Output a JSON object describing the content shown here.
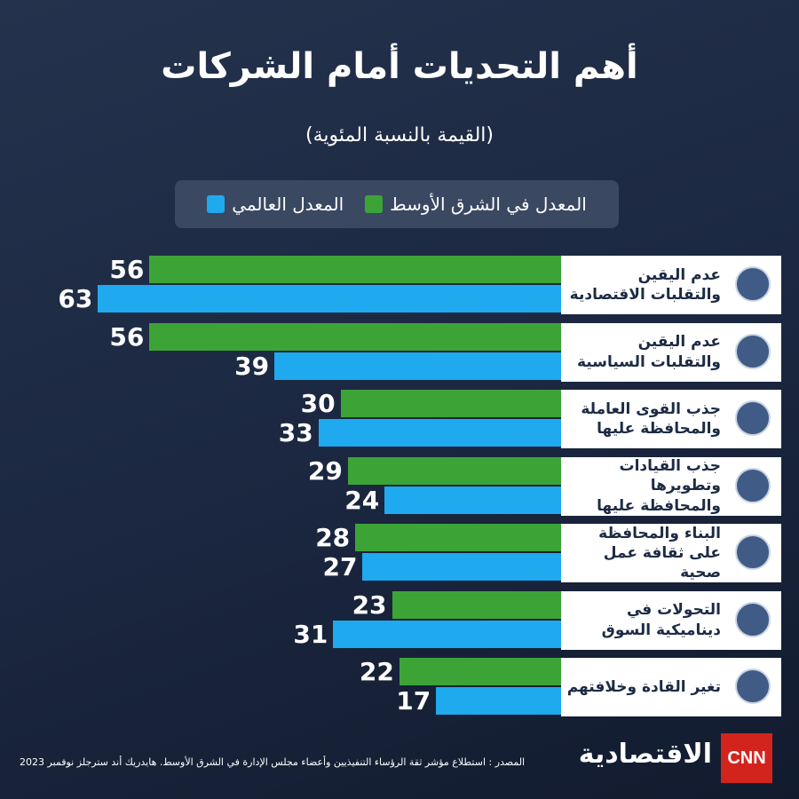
{
  "chart_data": {
    "type": "bar",
    "orientation": "horizontal",
    "title": "أهم التحديات أمام الشركات",
    "subtitle": "(القيمة بالنسبة المئوية)",
    "categories": [
      "عدم اليقين والتقلبات الاقتصادية",
      "عدم اليقين والتقلبات السياسية",
      "جذب القوى العاملة والمحافظة عليها",
      "جذب القيادات وتطويرها والمحافظة عليها",
      "البناء والمحافظة على ثقافة عمل صحية",
      "التحولات في ديناميكية السوق",
      "تغير القادة وخلافتهم"
    ],
    "series": [
      {
        "name": "المعدل  في الشرق الأوسط",
        "color": "#3ca437",
        "values": [
          56,
          56,
          30,
          29,
          28,
          23,
          22
        ]
      },
      {
        "name": "المعدل العالمي",
        "color": "#1fa9ef",
        "values": [
          63,
          39,
          33,
          24,
          27,
          31,
          17
        ]
      }
    ],
    "source": "المصدر : استطلاع مؤشر ثقة الرؤساء التنفيذيين وأعضاء مجلس الإدارة في الشرق الأوسط. هايدريك أند سترجلز نوفمبر 2023",
    "logo": "الاقتصادية",
    "brand": "CNN"
  }
}
